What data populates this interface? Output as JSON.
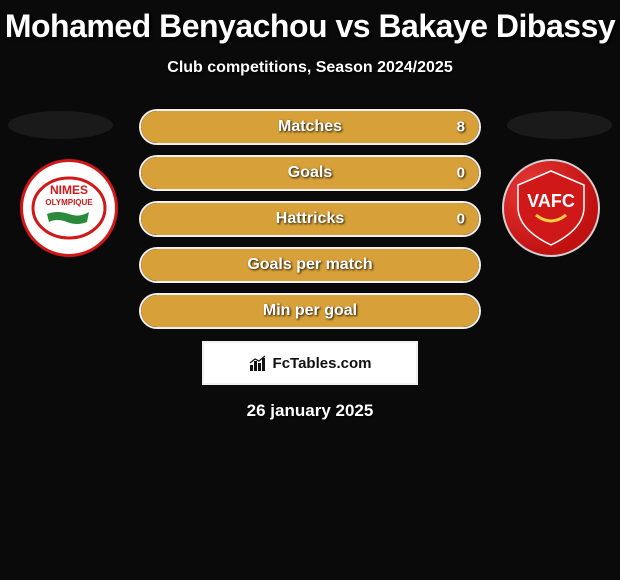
{
  "title": "Mohamed Benyachou vs Bakaye Dibassy",
  "subtitle": "Club competitions, Season 2024/2025",
  "leftClub": {
    "name": "NIMES",
    "subname": "OLYMPIQUE",
    "primaryColor": "#d01818",
    "bgColor": "#ffffff"
  },
  "rightClub": {
    "name": "VAFC",
    "primaryColor": "#d01818"
  },
  "stats": [
    {
      "label": "Matches",
      "leftValue": "",
      "rightValue": "8",
      "leftPct": 0,
      "rightPct": 100,
      "leftColor": "#62d67e",
      "rightColor": "#d8a038"
    },
    {
      "label": "Goals",
      "leftValue": "",
      "rightValue": "0",
      "leftPct": 0,
      "rightPct": 100,
      "leftColor": "#62d67e",
      "rightColor": "#d8a038"
    },
    {
      "label": "Hattricks",
      "leftValue": "",
      "rightValue": "0",
      "leftPct": 0,
      "rightPct": 100,
      "leftColor": "#62d67e",
      "rightColor": "#d8a038"
    },
    {
      "label": "Goals per match",
      "leftValue": "",
      "rightValue": "",
      "leftPct": 0,
      "rightPct": 100,
      "leftColor": "#62d67e",
      "rightColor": "#d8a038"
    },
    {
      "label": "Min per goal",
      "leftValue": "",
      "rightValue": "",
      "leftPct": 0,
      "rightPct": 100,
      "leftColor": "#62d67e",
      "rightColor": "#d8a038"
    }
  ],
  "attribution": "FcTables.com",
  "date": "26 january 2025",
  "colors": {
    "background": "#0a0a0a",
    "textPrimary": "#ffffff",
    "border": "#f0f0f0"
  }
}
